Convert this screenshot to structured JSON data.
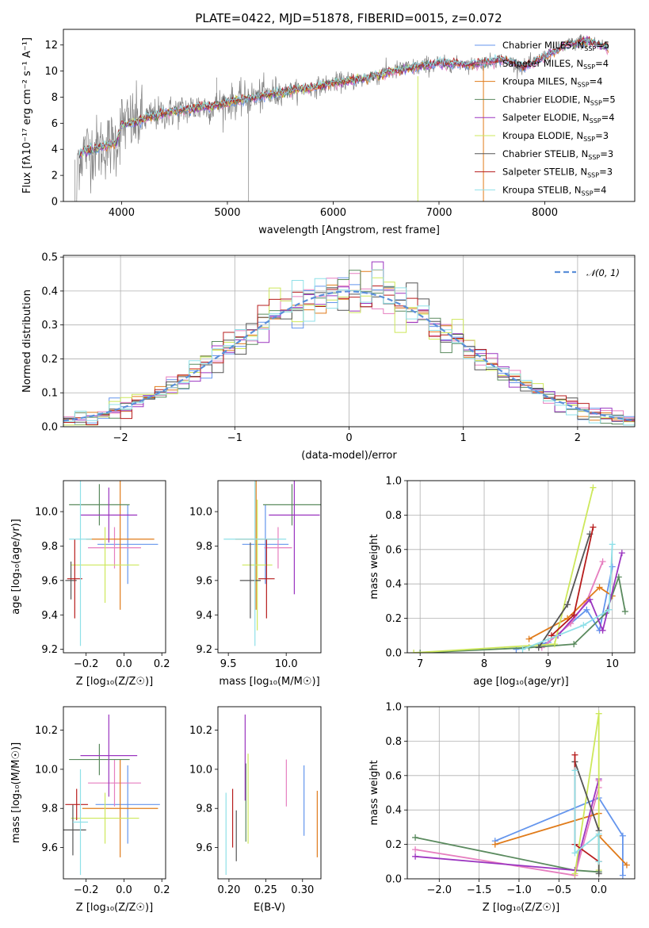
{
  "figure": {
    "title": "PLATE=0422, MJD=51878, FIBERID=0015, z=0.072",
    "colors": {
      "model_colors": [
        "#6495ed",
        "#e67ebf",
        "#e07b1a",
        "#5a8a5e",
        "#9b35c0",
        "#cde85b",
        "#555555",
        "#b71c1c",
        "#8fe0e8"
      ],
      "data_color": "#808080",
      "normal_curve": "#5b8fd9",
      "grid": "#b0b0b0"
    }
  },
  "chart_data": [
    {
      "id": "spectrum",
      "type": "line",
      "xlabel": "wavelength [Angstrom, rest frame]",
      "ylabel": "Flux [fλ10⁻¹⁷ erg cm⁻² s⁻¹ A⁻¹]",
      "xlim": [
        3450,
        8850
      ],
      "ylim": [
        0,
        13.2
      ],
      "xticks": [
        4000,
        5000,
        6000,
        7000,
        8000
      ],
      "yticks": [
        0,
        2,
        4,
        6,
        8,
        10,
        12
      ],
      "legend_position": "right",
      "legend": [
        "Chabrier MILES, N_SSP=5",
        "Salpeter MILES, N_SSP=4",
        "Kroupa MILES, N_SSP=4",
        "Chabrier ELODIE, N_SSP=5",
        "Salpeter ELODIE, N_SSP=4",
        "Kroupa ELODIE, N_SSP=3",
        "Chabrier STELIB, N_SSP=3",
        "Salpeter STELIB, N_SSP=3",
        "Kroupa STELIB, N_SSP=4"
      ],
      "continuum": {
        "x": [
          3560,
          3650,
          3800,
          3950,
          4000,
          4150,
          4300,
          4500,
          4700,
          4860,
          5000,
          5200,
          5400,
          5600,
          5800,
          6000,
          6300,
          6563,
          6800,
          7000,
          7300,
          7600,
          7800,
          8000,
          8200,
          8400,
          8600
        ],
        "y": [
          3.2,
          3.9,
          4.1,
          4.5,
          5.9,
          6.1,
          6.6,
          6.9,
          7.2,
          7.3,
          7.6,
          7.9,
          8.2,
          8.5,
          8.7,
          9.1,
          9.4,
          10.0,
          10.3,
          10.6,
          10.5,
          10.9,
          10.3,
          11.1,
          12.0,
          12.3,
          11.8
        ]
      }
    },
    {
      "id": "residuals",
      "type": "line",
      "xlabel": "(data-model)/error",
      "ylabel": "Normed distribution",
      "xlim": [
        -2.5,
        2.5
      ],
      "ylim": [
        0,
        0.505
      ],
      "xticks": [
        -2,
        -1,
        0,
        1,
        2
      ],
      "xtick_labels": [
        "−2",
        "−1",
        "0",
        "1",
        "2"
      ],
      "yticks": [
        0.0,
        0.1,
        0.2,
        0.3,
        0.4,
        0.5
      ],
      "ytick_labels": [
        "0.0",
        "0.1",
        "0.2",
        "0.3",
        "0.4",
        "0.5"
      ],
      "legend": [
        "𝒩(0, 1)"
      ],
      "legend_position": "top-right",
      "series": [
        {
          "name": "𝒩(0, 1)",
          "function": "normal_pdf",
          "mean": 0,
          "sigma": 1
        }
      ]
    },
    {
      "id": "age_vs_Z",
      "type": "scatter",
      "xlabel": "Z [log₁₀(Z/Z☉)]",
      "ylabel": "age  [log₁₀(age/yr)]",
      "xlim": [
        -0.32,
        0.22
      ],
      "ylim": [
        9.18,
        10.18
      ],
      "xticks": [
        -0.2,
        0.0,
        0.2
      ],
      "xtick_labels": [
        "−0.2",
        "0.0",
        "0.2"
      ],
      "yticks": [
        9.2,
        9.4,
        9.6,
        9.8,
        10.0
      ],
      "yticks_labels": [
        "9.2",
        "9.4",
        "9.6",
        "9.8",
        "10.0"
      ],
      "points": [
        {
          "x": 0.02,
          "xerr": 0.16,
          "y": 9.81,
          "yerr": 0.23
        },
        {
          "x": -0.05,
          "xerr": 0.14,
          "y": 9.79,
          "yerr": 0.12
        },
        {
          "x": -0.02,
          "xerr": 0.18,
          "y": 9.84,
          "yerr": 0.41
        },
        {
          "x": -0.13,
          "xerr": 0.16,
          "y": 10.04,
          "yerr": 0.12
        },
        {
          "x": -0.08,
          "xerr": 0.15,
          "y": 9.98,
          "yerr": 0.16
        },
        {
          "x": -0.1,
          "xerr": 0.18,
          "y": 9.69,
          "yerr": 0.22
        },
        {
          "x": -0.28,
          "xerr": 0.03,
          "y": 9.6,
          "yerr": 0.11
        },
        {
          "x": -0.26,
          "xerr": 0.04,
          "y": 9.61,
          "yerr": 0.23
        },
        {
          "x": -0.23,
          "xerr": 0.06,
          "y": 9.84,
          "yerr": 0.62
        }
      ]
    },
    {
      "id": "age_vs_mass",
      "type": "scatter",
      "xlabel": "mass [log₁₀(M/M☉)]",
      "ylabel": "",
      "xlim": [
        9.41,
        10.3
      ],
      "ylim": [
        9.18,
        10.18
      ],
      "xticks": [
        9.5,
        10.0
      ],
      "xtick_labels": [
        "9.5",
        "10.0"
      ],
      "yticks": [
        9.2,
        9.4,
        9.6,
        9.8,
        10.0
      ],
      "yticks_labels": [
        "9.2",
        "9.4",
        "9.6",
        "9.8",
        "10.0"
      ],
      "points": [
        {
          "x": 9.82,
          "xerr": 0.2,
          "y": 9.81,
          "yerr": 0.23
        },
        {
          "x": 9.93,
          "xerr": 0.12,
          "y": 9.79,
          "yerr": 0.12
        },
        {
          "x": 9.74,
          "xerr": 0.18,
          "y": 9.84,
          "yerr": 0.41
        },
        {
          "x": 10.05,
          "xerr": 0.25,
          "y": 10.04,
          "yerr": 0.12
        },
        {
          "x": 10.07,
          "xerr": 0.22,
          "y": 9.98,
          "yerr": 0.46
        },
        {
          "x": 9.75,
          "xerr": 0.13,
          "y": 9.69,
          "yerr": 0.38
        },
        {
          "x": 9.69,
          "xerr": 0.09,
          "y": 9.6,
          "yerr": 0.22
        },
        {
          "x": 9.83,
          "xerr": 0.07,
          "y": 9.61,
          "yerr": 0.23
        },
        {
          "x": 9.73,
          "xerr": 0.27,
          "y": 9.84,
          "yerr": 0.62
        }
      ]
    },
    {
      "id": "weight_vs_age",
      "type": "line",
      "xlabel": "age  [log₁₀(age/yr)]",
      "ylabel": "mass weight",
      "xlim": [
        6.8,
        10.35
      ],
      "ylim": [
        0,
        1.0
      ],
      "xticks": [
        7,
        8,
        9,
        10
      ],
      "xtick_labels": [
        "7",
        "8",
        "9",
        "10"
      ],
      "yticks": [
        0.0,
        0.2,
        0.4,
        0.6,
        0.8,
        1.0
      ],
      "ytick_labels": [
        "0.0",
        "0.2",
        "0.4",
        "0.6",
        "0.8",
        "1.0"
      ],
      "series": [
        {
          "x": [
            8.5,
            9.0,
            9.6,
            9.8,
            10.0
          ],
          "y": [
            0.02,
            0.06,
            0.25,
            0.13,
            0.5
          ]
        },
        {
          "x": [
            8.9,
            9.35,
            9.6,
            9.85
          ],
          "y": [
            0.03,
            0.17,
            0.3,
            0.53
          ]
        },
        {
          "x": [
            8.7,
            9.3,
            9.8,
            10.0
          ],
          "y": [
            0.08,
            0.2,
            0.38,
            0.33
          ]
        },
        {
          "x": [
            7.0,
            8.7,
            9.4,
            9.9,
            10.1,
            10.2
          ],
          "y": [
            0.0,
            0.03,
            0.05,
            0.23,
            0.44,
            0.24
          ]
        },
        {
          "x": [
            9.15,
            9.65,
            9.85,
            10.15
          ],
          "y": [
            0.1,
            0.31,
            0.13,
            0.58
          ]
        },
        {
          "x": [
            6.9,
            9.1,
            9.7
          ],
          "y": [
            0.0,
            0.05,
            0.96
          ]
        },
        {
          "x": [
            8.85,
            9.3,
            9.65
          ],
          "y": [
            0.03,
            0.28,
            0.69
          ]
        },
        {
          "x": [
            9.05,
            9.4,
            9.7
          ],
          "y": [
            0.1,
            0.22,
            0.73
          ]
        },
        {
          "x": [
            8.6,
            9.55,
            9.95,
            10.0
          ],
          "y": [
            0.02,
            0.16,
            0.25,
            0.63
          ]
        }
      ]
    },
    {
      "id": "mass_vs_Z",
      "type": "scatter",
      "xlabel": "Z [log₁₀(Z/Z☉)]",
      "ylabel": "mass [log₁₀(M/M☉)]",
      "xlim": [
        -0.32,
        0.22
      ],
      "ylim": [
        9.44,
        10.32
      ],
      "xticks": [
        -0.2,
        0.0,
        0.2
      ],
      "xtick_labels": [
        "−0.2",
        "0.0",
        "0.2"
      ],
      "yticks": [
        9.6,
        9.8,
        10.0,
        10.2
      ],
      "ytick_labels": [
        "9.6",
        "9.8",
        "10.0",
        "10.2"
      ],
      "points": [
        {
          "x": 0.02,
          "xerr": 0.17,
          "y": 9.82,
          "yerr": 0.2
        },
        {
          "x": -0.05,
          "xerr": 0.14,
          "y": 9.93,
          "yerr": 0.12
        },
        {
          "x": -0.02,
          "xerr": 0.2,
          "y": 9.8,
          "yerr": 0.25
        },
        {
          "x": -0.13,
          "xerr": 0.16,
          "y": 10.05,
          "yerr": 0.08
        },
        {
          "x": -0.08,
          "xerr": 0.15,
          "y": 10.07,
          "yerr": 0.21
        },
        {
          "x": -0.1,
          "xerr": 0.18,
          "y": 9.75,
          "yerr": 0.13
        },
        {
          "x": -0.27,
          "xerr": 0.07,
          "y": 9.69,
          "yerr": 0.13
        },
        {
          "x": -0.25,
          "xerr": 0.06,
          "y": 9.82,
          "yerr": 0.08
        },
        {
          "x": -0.23,
          "xerr": 0.04,
          "y": 9.73,
          "yerr": 0.27
        }
      ]
    },
    {
      "id": "mass_vs_ebv",
      "type": "scatter",
      "xlabel": "E(B-V)",
      "ylabel": "",
      "xlim": [
        0.185,
        0.325
      ],
      "ylim": [
        9.44,
        10.32
      ],
      "xticks": [
        0.2,
        0.25,
        0.3
      ],
      "xtick_labels": [
        "0.20",
        "0.25",
        "0.30"
      ],
      "yticks": [
        9.6,
        9.8,
        10.0,
        10.2
      ],
      "ytick_labels": [
        "9.6",
        "9.8",
        "10.0",
        "10.2"
      ],
      "points": [
        {
          "x": 0.302,
          "y": 9.84,
          "yerr": 0.18
        },
        {
          "x": 0.278,
          "y": 9.93,
          "yerr": 0.12
        },
        {
          "x": 0.32,
          "y": 9.72,
          "yerr": 0.17
        },
        {
          "x": 0.223,
          "y": 9.83,
          "yerr": 0.2
        },
        {
          "x": 0.222,
          "y": 10.06,
          "yerr": 0.22
        },
        {
          "x": 0.226,
          "y": 9.85,
          "yerr": 0.23
        },
        {
          "x": 0.21,
          "y": 9.66,
          "yerr": 0.13
        },
        {
          "x": 0.205,
          "y": 9.75,
          "yerr": 0.15
        },
        {
          "x": 0.196,
          "y": 9.67,
          "yerr": 0.21
        }
      ]
    },
    {
      "id": "weight_vs_Z",
      "type": "line",
      "xlabel": "Z [log₁₀(Z/Z☉)]",
      "ylabel": "mass weight",
      "xlim": [
        -2.4,
        0.45
      ],
      "ylim": [
        0,
        1.0
      ],
      "xticks": [
        -2.0,
        -1.5,
        -1.0,
        -0.5,
        0.0
      ],
      "xtick_labels": [
        "−2.0",
        "−1.5",
        "−1.0",
        "−0.5",
        "0.0"
      ],
      "yticks": [
        0.0,
        0.2,
        0.4,
        0.6,
        0.8,
        1.0
      ],
      "ytick_labels": [
        "0.0",
        "0.2",
        "0.4",
        "0.6",
        "0.8",
        "1.0"
      ],
      "series": [
        {
          "x": [
            -1.3,
            0.0,
            0.3,
            0.3
          ],
          "y": [
            0.22,
            0.47,
            0.25,
            0.02
          ]
        },
        {
          "x": [
            -2.3,
            -0.3,
            0.0,
            0.0
          ],
          "y": [
            0.17,
            0.02,
            0.53,
            0.57
          ]
        },
        {
          "x": [
            -1.3,
            0.0,
            0.0,
            0.35
          ],
          "y": [
            0.2,
            0.38,
            0.25,
            0.08
          ]
        },
        {
          "x": [
            -2.3,
            -0.3,
            0.0
          ],
          "y": [
            0.24,
            0.05,
            0.04
          ]
        },
        {
          "x": [
            -2.3,
            -0.3,
            0.0
          ],
          "y": [
            0.13,
            0.05,
            0.58
          ]
        },
        {
          "x": [
            -0.3,
            0.0,
            0.0
          ],
          "y": [
            0.03,
            0.96,
            0.05
          ]
        },
        {
          "x": [
            -0.3,
            0.0,
            0.0
          ],
          "y": [
            0.68,
            0.28,
            0.03
          ]
        },
        {
          "x": [
            -0.3,
            -0.3,
            0.0
          ],
          "y": [
            0.72,
            0.2,
            0.1
          ]
        },
        {
          "x": [
            -0.3,
            -0.3,
            0.0,
            0.0
          ],
          "y": [
            0.63,
            0.15,
            0.26,
            0.1
          ]
        }
      ]
    }
  ]
}
